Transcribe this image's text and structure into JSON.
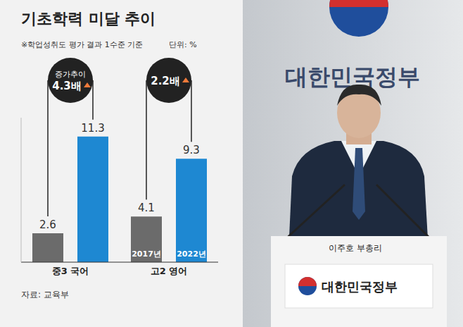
{
  "chart_data": {
    "type": "bar",
    "title": "기초학력 미달 추이",
    "subtitle": "※학업성취도 평가 결과 1수준 기준",
    "unit": "단위: %",
    "source": "자료: 교육부",
    "categories": [
      "중3 국어",
      "고2 영어"
    ],
    "series": [
      {
        "name": "2017년",
        "color": "#6b6b6b",
        "values": [
          2.6,
          4.1
        ]
      },
      {
        "name": "2022년",
        "color": "#1e88d2",
        "values": [
          11.3,
          9.3
        ]
      }
    ],
    "ylim": [
      0,
      13
    ],
    "data_labels": true,
    "tick_labels": "x",
    "grid": false,
    "annotations": [
      {
        "category": "중3 국어",
        "lines": [
          "증가추이",
          "4.3배"
        ]
      },
      {
        "category": "고2 영어",
        "lines": [
          "2.2배"
        ]
      }
    ]
  },
  "photo": {
    "wall_text": "대한민국정부",
    "caption": "이주호 부총리",
    "podium_text": "대한민국정부"
  }
}
